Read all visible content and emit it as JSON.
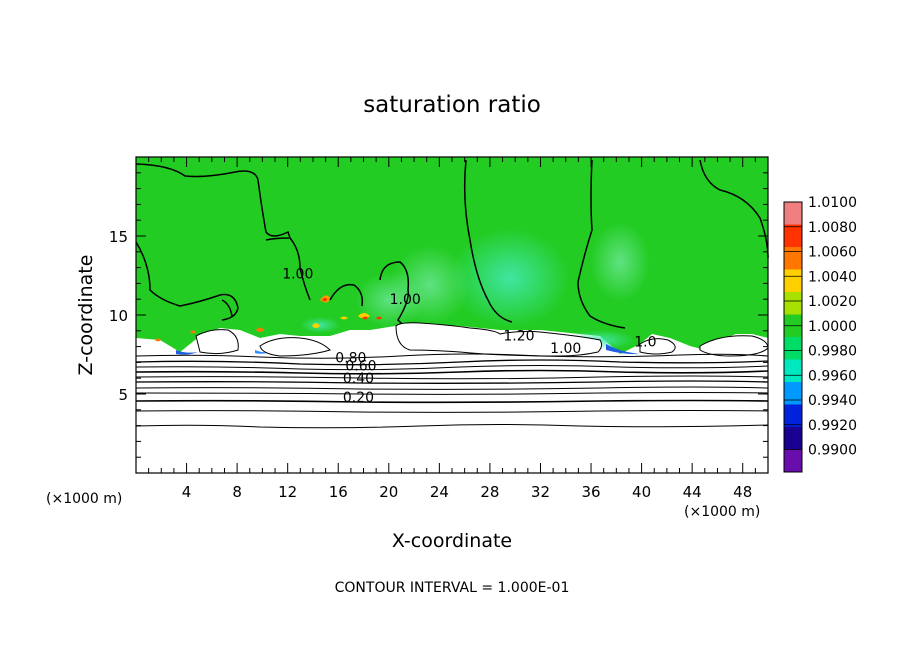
{
  "chart_data": {
    "type": "heatmap",
    "title": "saturation ratio",
    "xlabel": "X-coordinate",
    "ylabel": "Z-coordinate",
    "x_unit_left": "(×1000 m)",
    "x_unit_right": "(×1000 m)",
    "xlim": [
      0,
      50
    ],
    "ylim": [
      0,
      20
    ],
    "x_ticks": [
      4,
      8,
      12,
      16,
      20,
      24,
      28,
      32,
      36,
      40,
      44,
      48
    ],
    "y_ticks": [
      5,
      10,
      15
    ],
    "footer": "CONTOUR INTERVAL = 1.000E-01",
    "colorbar": {
      "levels": [
        "1.0100",
        "1.0080",
        "1.0060",
        "1.0040",
        "1.0020",
        "1.0000",
        "0.9980",
        "0.9960",
        "0.9940",
        "0.9920",
        "0.9900"
      ],
      "colors": [
        "#f08080",
        "#ff3300",
        "#ff7700",
        "#ffd000",
        "#a8e000",
        "#22cc22",
        "#00dd66",
        "#00e8c0",
        "#0099ff",
        "#0022dd",
        "#1a0090",
        "#6a0dad"
      ]
    },
    "contour_labels": [
      {
        "text": "1.00",
        "x": 12.8,
        "z": 12.3
      },
      {
        "text": "1.00",
        "x": 21.3,
        "z": 10.7
      },
      {
        "text": "1.20",
        "x": 30.3,
        "z": 8.4
      },
      {
        "text": "1.00",
        "x": 34.0,
        "z": 7.6
      },
      {
        "text": "1.0",
        "x": 40.3,
        "z": 8.0
      },
      {
        "text": "0.80",
        "x": 17.0,
        "z": 7.0
      },
      {
        "text": "0.60",
        "x": 17.8,
        "z": 6.5
      },
      {
        "text": "0.40",
        "x": 17.6,
        "z": 5.7
      },
      {
        "text": "0.20",
        "x": 17.6,
        "z": 4.5
      }
    ]
  }
}
